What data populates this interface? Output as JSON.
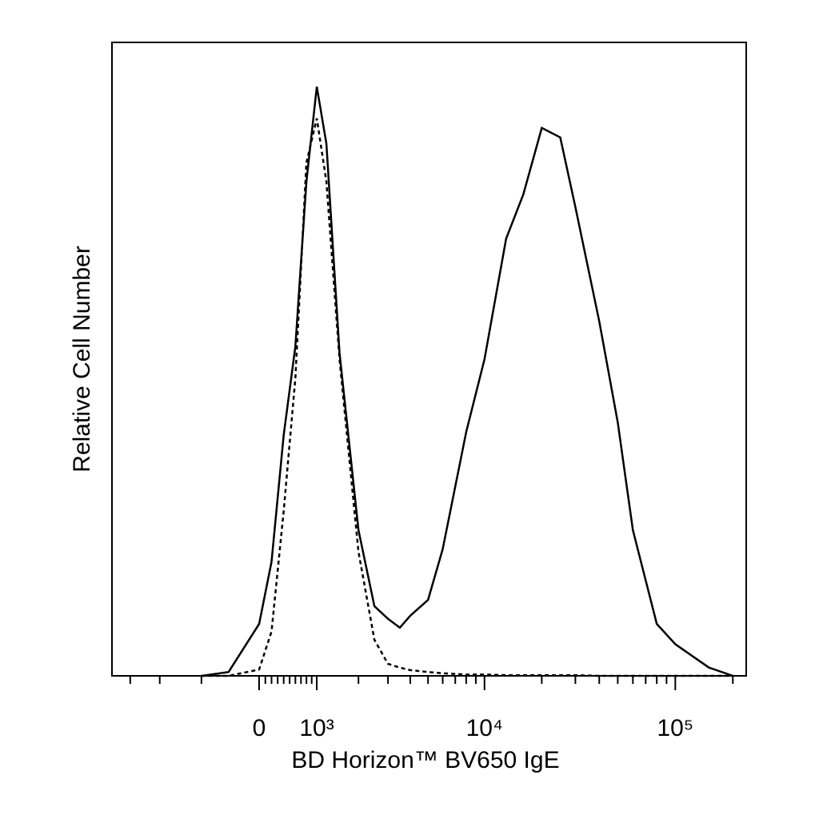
{
  "chart_data": {
    "type": "line",
    "xlabel": "BD Horizon™ BV650 IgE",
    "ylabel": "Relative Cell Number",
    "xscale": "biexponential",
    "xlim": [
      -3800,
      235000
    ],
    "xticks": [
      {
        "value": 0,
        "label": "0"
      },
      {
        "value": 1000,
        "label": "10³"
      },
      {
        "value": 10000,
        "label": "10⁴"
      },
      {
        "value": 100000,
        "label": "10⁵"
      }
    ],
    "xminorticks": [
      -3000,
      -2000,
      -1000,
      100,
      200,
      300,
      400,
      500,
      600,
      700,
      800,
      900,
      2000,
      3000,
      4000,
      5000,
      6000,
      7000,
      8000,
      9000,
      20000,
      30000,
      40000,
      50000,
      60000,
      70000,
      80000,
      90000,
      200000
    ],
    "ylim": [
      0,
      100
    ],
    "x": [
      -1000,
      -500,
      0,
      200,
      400,
      600,
      800,
      1000,
      1200,
      1500,
      2000,
      2500,
      3000,
      3500,
      4000,
      5000,
      6000,
      8000,
      10000,
      13000,
      16000,
      20000,
      25000,
      30000,
      40000,
      50000,
      60000,
      80000,
      100000,
      150000,
      200000
    ],
    "series": [
      {
        "color": "#000000",
        "dash": "solid",
        "values": [
          0,
          0.6,
          8.2,
          18,
          38,
          52,
          78,
          93,
          84,
          51,
          23,
          11,
          9,
          7.6,
          9.5,
          12,
          20,
          38.5,
          50,
          69,
          76,
          86.5,
          85,
          74,
          56,
          40,
          23,
          8.2,
          5,
          1.3,
          0
        ]
      },
      {
        "color": "#000000",
        "dash": "dashed",
        "values": [
          0,
          0,
          1,
          7,
          26,
          47,
          81,
          88,
          78,
          50,
          19.6,
          5.7,
          1.9,
          1.3,
          0.9,
          0.6,
          0.4,
          0.2,
          0.2,
          0.1,
          0.1,
          0.1,
          0.1,
          0.1,
          0,
          0,
          0,
          0,
          0,
          0,
          0
        ]
      }
    ]
  }
}
